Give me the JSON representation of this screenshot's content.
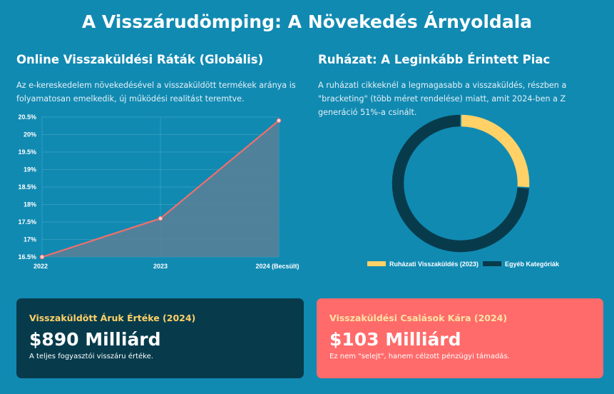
{
  "page": {
    "title": "A Visszárudömping: A Növekedés Árnyoldala"
  },
  "left_section": {
    "title": "Online Visszaküldési Ráták (Globális)",
    "description": "Az e-kereskedelem növekedésével a visszaküldött termékek aránya is folyamatosan emelkedik, új működési realitást teremtve."
  },
  "right_section": {
    "title": "Ruházat: A Leginkább Érintett Piac",
    "description": "A ruházati cikkeknél a legmagasabb a visszaküldés, részben a \"bracketing\" (több méret rendelése) miatt, amit 2024-ben a Z generáció 51%-a csinált."
  },
  "chart_data": [
    {
      "type": "area",
      "categories": [
        "2022",
        "2023",
        "2024 (Becsült)"
      ],
      "values": [
        16.5,
        17.6,
        20.4
      ],
      "ylim": [
        16.5,
        20.5
      ],
      "yticks": [
        16.5,
        17,
        17.5,
        18,
        18.5,
        19,
        19.5,
        20,
        20.5
      ],
      "ytick_labels": [
        "16.5%",
        "17%",
        "17.5%",
        "18%",
        "18.5%",
        "19%",
        "19.5%",
        "20%",
        "20.5%"
      ],
      "grid": true,
      "line_color": "#ef6f6c",
      "fill_color": "#5b7f96"
    },
    {
      "type": "pie",
      "labels": [
        "Ruházati Visszaküldés (2023)",
        "Egyéb Kategóriák"
      ],
      "values": [
        26,
        74
      ],
      "colors": [
        "#ffd166",
        "#073b4c"
      ],
      "legend": "bottom"
    }
  ],
  "cards": [
    {
      "label": "Visszaküldött Áruk Értéke (2024)",
      "value": "$890 Milliárd",
      "note": "A teljes fogyasztói visszáru értéke."
    },
    {
      "label": "Visszaküldési Csalások Kára (2024)",
      "value": "$103 Milliárd",
      "note": "Ez nem \"selejt\", hanem célzott pénzügyi támadás."
    }
  ]
}
